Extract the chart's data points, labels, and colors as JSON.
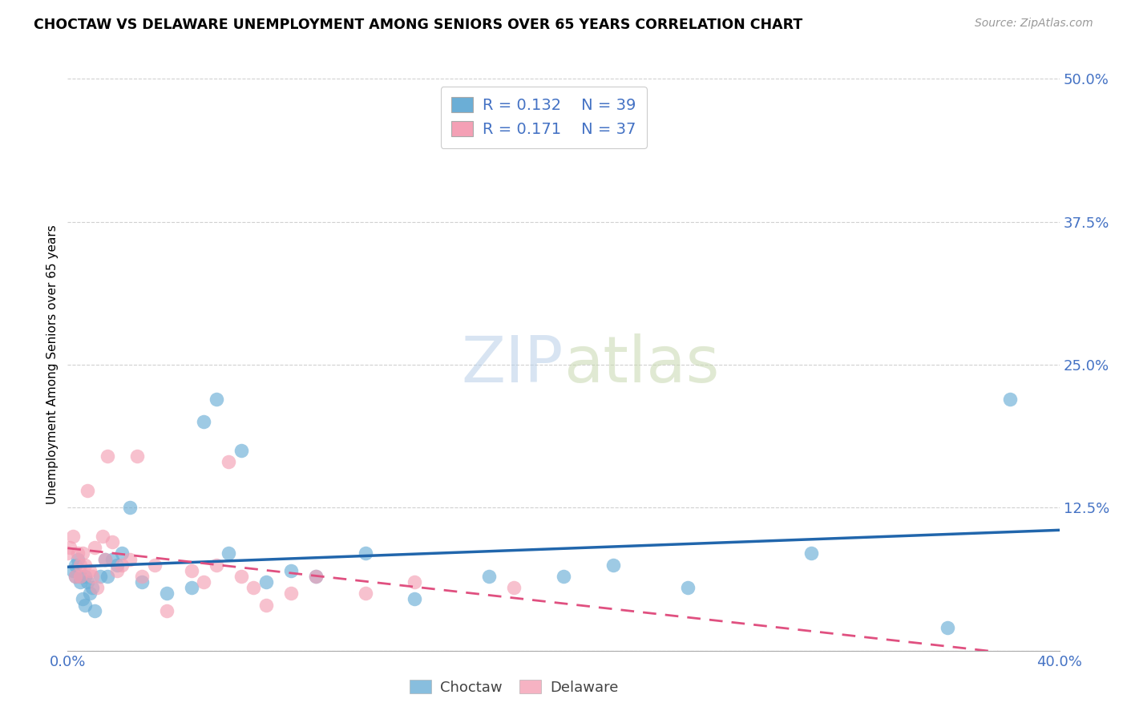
{
  "title": "CHOCTAW VS DELAWARE UNEMPLOYMENT AMONG SENIORS OVER 65 YEARS CORRELATION CHART",
  "source": "Source: ZipAtlas.com",
  "ylabel": "Unemployment Among Seniors over 65 years",
  "xlim": [
    0.0,
    0.4
  ],
  "ylim": [
    0.0,
    0.5
  ],
  "xticks": [
    0.0,
    0.1,
    0.2,
    0.3,
    0.4
  ],
  "xtick_labels": [
    "0.0%",
    "",
    "",
    "",
    "40.0%"
  ],
  "yticks": [
    0.0,
    0.125,
    0.25,
    0.375,
    0.5
  ],
  "ytick_labels": [
    "",
    "12.5%",
    "25.0%",
    "37.5%",
    "50.0%"
  ],
  "watermark_zip": "ZIP",
  "watermark_atlas": "atlas",
  "choctaw_color": "#6baed6",
  "delaware_color": "#f4a0b5",
  "choctaw_line_color": "#2166ac",
  "delaware_line_color": "#e05080",
  "choctaw_R": 0.132,
  "choctaw_N": 39,
  "delaware_R": 0.171,
  "delaware_N": 37,
  "choctaw_x": [
    0.002,
    0.003,
    0.003,
    0.004,
    0.005,
    0.005,
    0.006,
    0.007,
    0.007,
    0.008,
    0.009,
    0.01,
    0.011,
    0.013,
    0.015,
    0.016,
    0.018,
    0.02,
    0.022,
    0.025,
    0.03,
    0.04,
    0.05,
    0.055,
    0.06,
    0.065,
    0.07,
    0.08,
    0.09,
    0.1,
    0.12,
    0.14,
    0.17,
    0.2,
    0.22,
    0.25,
    0.3,
    0.355,
    0.38
  ],
  "choctaw_y": [
    0.07,
    0.075,
    0.065,
    0.08,
    0.065,
    0.06,
    0.045,
    0.065,
    0.04,
    0.06,
    0.05,
    0.055,
    0.035,
    0.065,
    0.08,
    0.065,
    0.08,
    0.075,
    0.085,
    0.125,
    0.06,
    0.05,
    0.055,
    0.2,
    0.22,
    0.085,
    0.175,
    0.06,
    0.07,
    0.065,
    0.085,
    0.045,
    0.065,
    0.065,
    0.075,
    0.055,
    0.085,
    0.02,
    0.22
  ],
  "delaware_x": [
    0.0,
    0.001,
    0.002,
    0.003,
    0.004,
    0.005,
    0.005,
    0.006,
    0.007,
    0.008,
    0.009,
    0.01,
    0.011,
    0.012,
    0.014,
    0.015,
    0.016,
    0.018,
    0.02,
    0.022,
    0.025,
    0.028,
    0.03,
    0.035,
    0.04,
    0.05,
    0.055,
    0.06,
    0.065,
    0.07,
    0.075,
    0.08,
    0.09,
    0.1,
    0.12,
    0.14,
    0.18
  ],
  "delaware_y": [
    0.085,
    0.09,
    0.1,
    0.065,
    0.085,
    0.075,
    0.065,
    0.085,
    0.075,
    0.14,
    0.07,
    0.065,
    0.09,
    0.055,
    0.1,
    0.08,
    0.17,
    0.095,
    0.07,
    0.075,
    0.08,
    0.17,
    0.065,
    0.075,
    0.035,
    0.07,
    0.06,
    0.075,
    0.165,
    0.065,
    0.055,
    0.04,
    0.05,
    0.065,
    0.05,
    0.06,
    0.055
  ]
}
